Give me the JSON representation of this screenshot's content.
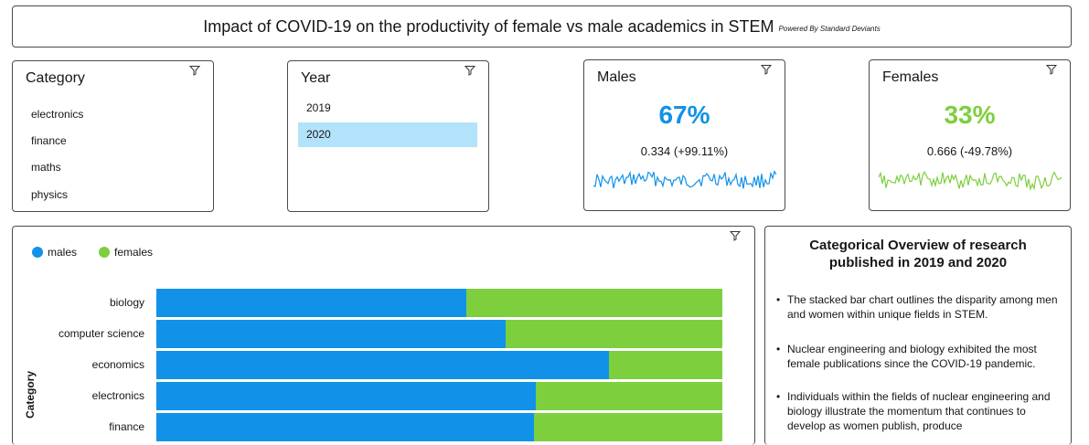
{
  "header": {
    "title": "Impact of COVID-19 on the productivity of female vs male academics in STEM",
    "powered_by": "Powered By Standard Deviants"
  },
  "category_filter": {
    "title": "Category",
    "items": [
      "electronics",
      "finance",
      "maths",
      "physics"
    ]
  },
  "year_filter": {
    "title": "Year",
    "items": [
      "2019",
      "2020"
    ],
    "selected": "2020"
  },
  "males_kpi": {
    "title": "Males",
    "value": "67%",
    "subtext": "0.334 (+99.11%)",
    "color": "#1192e8"
  },
  "females_kpi": {
    "title": "Females",
    "value": "33%",
    "subtext": "0.666 (-49.78%)",
    "color": "#7dcf3e"
  },
  "icons": {
    "filter": "filter-icon"
  },
  "chart_data": {
    "type": "bar",
    "orientation": "horizontal",
    "stacked": true,
    "percent_stacked": true,
    "categories": [
      "biology",
      "computer science",
      "economics",
      "electronics",
      "finance"
    ],
    "series": [
      {
        "name": "males",
        "values": [
          0.547,
          0.617,
          0.8,
          0.671,
          0.667
        ],
        "color": "#1192e8"
      },
      {
        "name": "females",
        "values": [
          0.453,
          0.383,
          0.2,
          0.329,
          0.333
        ],
        "color": "#7dcf3e"
      }
    ],
    "ylabel": "Category",
    "legend": "top-left",
    "xlim": [
      0,
      1
    ]
  },
  "overview": {
    "title": "Categorical Overview of research published in 2019 and 2020",
    "bullets": [
      "The stacked bar chart outlines the disparity among men and women within unique fields in STEM.",
      "Nuclear engineering and biology exhibited the most female publications since the COVID-19 pandemic.",
      "Individuals within the fields of nuclear engineering and biology illustrate the momentum that continues to develop as women publish, produce"
    ]
  }
}
